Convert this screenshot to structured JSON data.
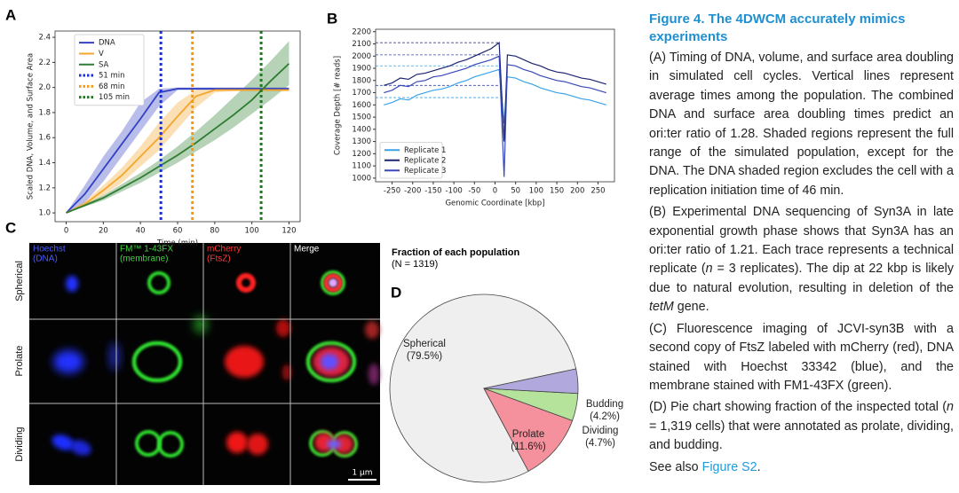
{
  "chart_data": [
    {
      "type": "line",
      "panel": "A",
      "xlabel": "Time (min)",
      "ylabel": "Scaled DNA, Volume, and Surface Area",
      "x": [
        0,
        10,
        20,
        30,
        40,
        50,
        60,
        70,
        80,
        90,
        100,
        110,
        120
      ],
      "xlim": [
        -6,
        126
      ],
      "xticks": [
        0,
        20,
        40,
        60,
        80,
        100,
        120
      ],
      "ylim": [
        0.93,
        2.45
      ],
      "yticks": [
        {
          "value": 1,
          "label": "1.0"
        },
        {
          "value": 1.2,
          "label": "1.2"
        },
        {
          "value": 1.4,
          "label": "1.4"
        },
        {
          "value": 1.6,
          "label": "1.6"
        },
        {
          "value": 1.8,
          "label": "1.8"
        },
        {
          "value": 2,
          "label": "2.0"
        },
        {
          "value": 2.2,
          "label": "2.2"
        },
        {
          "value": 2.4,
          "label": "2.4"
        }
      ],
      "legend": "upper left",
      "series": [
        {
          "name": "DNA",
          "color": "#3441c4",
          "values": [
            1.0,
            1.15,
            1.35,
            1.55,
            1.75,
            1.96,
            1.99,
            1.99,
            1.99,
            1.99,
            1.99,
            1.99,
            1.99
          ],
          "lower": [
            1.0,
            1.08,
            1.25,
            1.45,
            1.65,
            1.85,
            1.98,
            1.98,
            1.98,
            1.98,
            1.98,
            1.98,
            1.98
          ],
          "upper": [
            1.0,
            1.22,
            1.45,
            1.65,
            1.88,
            1.99,
            2.0,
            2.0,
            2.0,
            2.0,
            2.0,
            2.0,
            2.0
          ]
        },
        {
          "name": "V",
          "color": "#f4a52c",
          "values": [
            1.0,
            1.07,
            1.18,
            1.3,
            1.45,
            1.6,
            1.77,
            1.93,
            1.98,
            1.98,
            1.98,
            1.98,
            1.98
          ],
          "lower": [
            1.0,
            1.05,
            1.14,
            1.24,
            1.37,
            1.5,
            1.67,
            1.84,
            1.96,
            1.97,
            1.97,
            1.97,
            1.97
          ],
          "upper": [
            1.0,
            1.09,
            1.22,
            1.36,
            1.53,
            1.72,
            1.88,
            1.98,
            1.99,
            1.99,
            1.99,
            1.99,
            1.99
          ]
        },
        {
          "name": "SA",
          "color": "#2e7d32",
          "values": [
            1.0,
            1.06,
            1.12,
            1.2,
            1.28,
            1.37,
            1.46,
            1.56,
            1.67,
            1.78,
            1.9,
            2.05,
            2.19
          ],
          "lower": [
            1.0,
            1.05,
            1.1,
            1.17,
            1.24,
            1.32,
            1.4,
            1.49,
            1.58,
            1.68,
            1.79,
            1.9,
            2.02
          ],
          "upper": [
            1.0,
            1.07,
            1.14,
            1.23,
            1.32,
            1.42,
            1.53,
            1.65,
            1.78,
            1.92,
            2.06,
            2.21,
            2.37
          ]
        }
      ],
      "vlines": [
        {
          "name": "51 min",
          "x": 51,
          "color": "#1b2fd6"
        },
        {
          "name": "68 min",
          "x": 68,
          "color": "#f39a12"
        },
        {
          "name": "105 min",
          "x": 105,
          "color": "#1c7a1c"
        }
      ]
    },
    {
      "type": "line",
      "panel": "B",
      "xlabel": "Genomic Coordinate [kbp]",
      "ylabel": "Coverage Depth [# reads]",
      "x": [
        -270,
        -250,
        -230,
        -210,
        -190,
        -170,
        -150,
        -130,
        -110,
        -90,
        -70,
        -50,
        -30,
        -10,
        10,
        22,
        30,
        50,
        70,
        90,
        110,
        130,
        150,
        170,
        190,
        210,
        230,
        250,
        270
      ],
      "xlim": [
        -290,
        290
      ],
      "xticks": [
        -250,
        -200,
        -150,
        -100,
        -50,
        0,
        50,
        100,
        150,
        200,
        250
      ],
      "ylim": [
        970,
        2220
      ],
      "yticks": [
        1000,
        1100,
        1200,
        1300,
        1400,
        1500,
        1600,
        1700,
        1800,
        1900,
        2000,
        2100,
        2200
      ],
      "legend": "lower left",
      "series": [
        {
          "name": "Replicate 1",
          "color": "#3aa3e8",
          "values": [
            1600,
            1620,
            1650,
            1640,
            1680,
            1700,
            1720,
            1730,
            1750,
            1780,
            1800,
            1830,
            1850,
            1870,
            1890,
            1450,
            1830,
            1820,
            1790,
            1770,
            1740,
            1720,
            1700,
            1690,
            1670,
            1650,
            1640,
            1620,
            1600
          ]
        },
        {
          "name": "Replicate 2",
          "color": "#1d2470",
          "values": [
            1760,
            1780,
            1820,
            1810,
            1850,
            1860,
            1880,
            1900,
            1920,
            1950,
            1970,
            2000,
            2030,
            2060,
            2110,
            1300,
            2010,
            2000,
            1970,
            1940,
            1920,
            1890,
            1870,
            1860,
            1840,
            1820,
            1810,
            1790,
            1770
          ]
        },
        {
          "name": "Replicate 3",
          "color": "#3848b8",
          "values": [
            1700,
            1720,
            1760,
            1750,
            1790,
            1800,
            1830,
            1840,
            1860,
            1880,
            1900,
            1930,
            1950,
            1970,
            2000,
            1010,
            1930,
            1920,
            1890,
            1870,
            1840,
            1820,
            1800,
            1790,
            1770,
            1750,
            1740,
            1720,
            1700
          ]
        }
      ],
      "hlines": [
        {
          "y": 2110,
          "color": "#1d2470"
        },
        {
          "y": 2010,
          "color": "#3848b8"
        },
        {
          "y": 1920,
          "color": "#3aa3e8"
        },
        {
          "y": 1760,
          "color": "#3848b8"
        },
        {
          "y": 1660,
          "color": "#3aa3e8"
        }
      ]
    },
    {
      "type": "pie",
      "panel": "D",
      "title": "Fraction of each population",
      "subtitle": "(N = 1319)",
      "categories": [
        "Spherical",
        "Prolate",
        "Dividing",
        "Budding"
      ],
      "values": [
        79.5,
        11.6,
        4.7,
        4.2
      ],
      "value_labels": [
        "(79.5%)",
        "(11.6%)",
        "(4.7%)",
        "(4.2%)"
      ],
      "colors": [
        "#efefef",
        "#f4919d",
        "#b6e39c",
        "#b1a9dd"
      ]
    }
  ],
  "panel_c": {
    "label": "C",
    "columns": [
      [
        "Hoechst",
        "(DNA)"
      ],
      [
        "FM™ 1-43FX",
        "(membrane)"
      ],
      [
        "mCherry",
        "(FtsZ)"
      ],
      [
        "Merge"
      ]
    ],
    "rows": [
      "Spherical",
      "Prolate",
      "Dividing"
    ],
    "scale_bar": "1 µm"
  },
  "caption": {
    "title": "Figure 4. The 4DWCM accurately mimics experiments",
    "paragraphs": [
      [
        "(A) Timing of DNA, volume, and surface area doubling in simulated cell cycles. Vertical lines represent average times among the population. The combined DNA and surface area doubling times predict an ori:ter ratio of 1.28. Shaded regions represent the full range of the simulated population, except for the DNA. The DNA shaded region excludes the cell with a replication initiation time of 46 min."
      ],
      [
        "(B) Experimental DNA sequencing of Syn3A in late exponential growth phase shows that Syn3A has an ori:ter ratio of 1.21. Each trace represents a technical replicate (",
        "n",
        " = 3 replicates). The dip at 22 kbp is likely due to natural evolution, resulting in deletion of the ",
        "tetM",
        " gene."
      ],
      [
        "(C) Fluorescence imaging of JCVI-syn3B with a second copy of FtsZ labeled with mCherry (red), DNA stained with Hoechst 33342 (blue), and the membrane stained with FM1-43FX (green)."
      ],
      [
        "(D) Pie chart showing fraction of the inspected total (",
        "n",
        " = 1,319 cells) that were annotated as prolate, dividing, and budding."
      ]
    ],
    "see_also": [
      "See also ",
      "Figure S2",
      "."
    ]
  }
}
